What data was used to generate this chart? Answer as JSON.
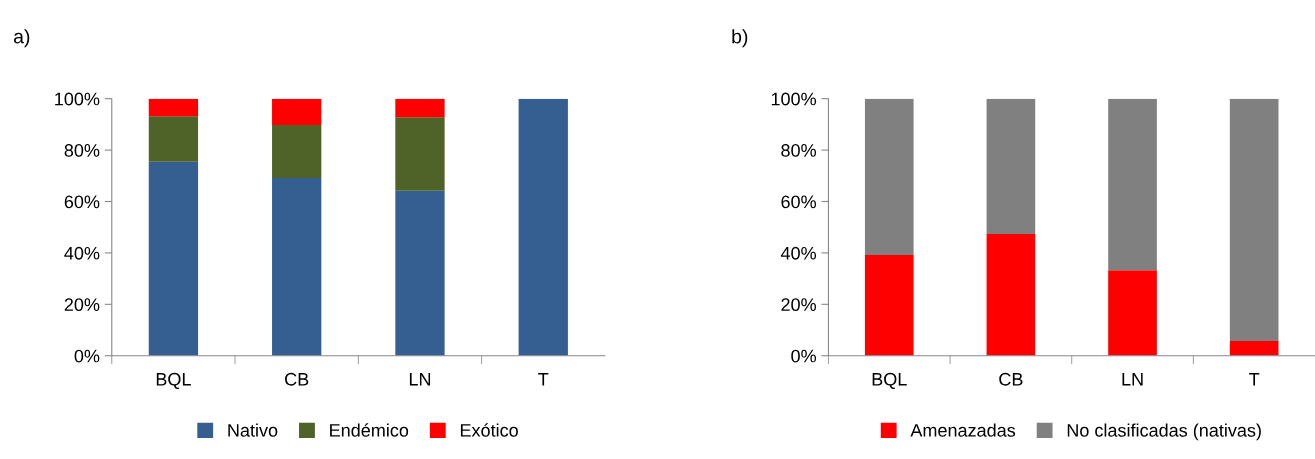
{
  "chart_data": [
    {
      "type": "bar",
      "title": "a)",
      "stacked": true,
      "categories": [
        "BQL",
        "CB",
        "LN",
        "T"
      ],
      "series": [
        {
          "name": "Nativo",
          "color": "#365f91",
          "values": [
            75.5,
            69.1,
            64.2,
            100
          ]
        },
        {
          "name": "Endémico",
          "color": "#4f6228",
          "values": [
            17.7,
            20.7,
            28.6,
            0
          ]
        },
        {
          "name": "Exótico",
          "color": "#ff0000",
          "values": [
            6.8,
            10.2,
            7.2,
            0
          ]
        }
      ],
      "ylim": [
        0,
        100
      ],
      "yticks": [
        {
          "value": 0,
          "label": "0%"
        },
        {
          "value": 20,
          "label": "20%"
        },
        {
          "value": 40,
          "label": "40%"
        },
        {
          "value": 60,
          "label": "60%"
        },
        {
          "value": 80,
          "label": "80%"
        },
        {
          "value": 100,
          "label": "100%"
        }
      ],
      "grid": false,
      "legend": "bottom"
    },
    {
      "type": "bar",
      "title": "b)",
      "stacked": true,
      "categories": [
        "BQL",
        "CB",
        "LN",
        "T"
      ],
      "series": [
        {
          "name": "Amenazadas",
          "color": "#ff0000",
          "values": [
            39.2,
            47.4,
            33.3,
            5.7
          ]
        },
        {
          "name": "No clasificadas (nativas)",
          "color": "#808080",
          "values": [
            60.8,
            52.6,
            66.7,
            94.3
          ]
        }
      ],
      "ylim": [
        0,
        100
      ],
      "yticks": [
        {
          "value": 0,
          "label": "0%"
        },
        {
          "value": 20,
          "label": "20%"
        },
        {
          "value": 40,
          "label": "40%"
        },
        {
          "value": 60,
          "label": "60%"
        },
        {
          "value": 80,
          "label": "80%"
        },
        {
          "value": 100,
          "label": "100%"
        }
      ],
      "grid": false,
      "legend": "bottom"
    }
  ]
}
